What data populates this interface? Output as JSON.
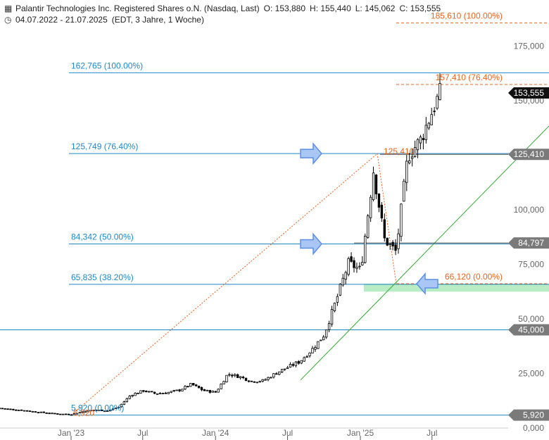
{
  "header": {
    "title_icon": "chart-bars-icon",
    "title": "Palantir Technologies Inc. Registered Shares o.N. (Nasdaq, Last)",
    "open": "O: 153,880",
    "high": "H: 155,440",
    "low": "L: 145,062",
    "close": "C: 153,555",
    "clock_icon": "clock-icon",
    "range": "04.07.2022 - 21.07.2025",
    "meta": "(EDT, 3 Jahre, 1 Woche)"
  },
  "chart_data": {
    "type": "candlestick",
    "title": "",
    "x_ticks": [
      "Jan '23",
      "Jul",
      "Jan '24",
      "Jul",
      "Jan '25",
      "Jul"
    ],
    "x_tick_dates": [
      "2023-01-01",
      "2023-07-01",
      "2024-01-01",
      "2024-07-01",
      "2025-01-01",
      "2025-07-01"
    ],
    "y_ticks": [
      "0,000",
      "25,000",
      "50,000",
      "75,000",
      "100,000",
      "125,000",
      "150,000",
      "175,000"
    ],
    "y_tick_values": [
      0,
      25,
      50,
      75,
      100,
      125,
      150,
      175
    ],
    "ylim": [
      0,
      190
    ],
    "series": [
      {
        "dates": [
          "2022-07-04",
          "2022-08-01",
          "2022-09-01",
          "2022-10-03",
          "2022-11-01",
          "2022-12-01",
          "2023-01-03",
          "2023-02-01",
          "2023-03-01",
          "2023-04-03",
          "2023-05-01",
          "2023-06-01",
          "2023-07-03",
          "2023-08-01",
          "2023-09-01",
          "2023-10-02",
          "2023-11-01",
          "2023-12-01",
          "2024-01-02",
          "2024-02-01",
          "2024-03-01",
          "2024-04-01",
          "2024-05-01",
          "2024-06-03",
          "2024-07-01",
          "2024-08-01",
          "2024-09-03",
          "2024-10-01",
          "2024-11-01",
          "2024-12-02",
          "2025-01-02",
          "2025-02-03",
          "2025-03-03",
          "2025-04-01",
          "2025-05-01",
          "2025-06-02",
          "2025-07-01",
          "2025-07-21"
        ],
        "close": [
          9.1,
          8.6,
          8.1,
          7.4,
          6.9,
          6.4,
          6.3,
          7.6,
          8.3,
          7.9,
          9.6,
          15.2,
          17.1,
          15.8,
          16.2,
          17.4,
          20.1,
          17.2,
          16.4,
          24.8,
          23.6,
          21.4,
          21.7,
          25.3,
          27.8,
          30.5,
          36.4,
          42.6,
          58.6,
          75.6,
          72.4,
          118.0,
          86.4,
          80.8,
          124.6,
          132.0,
          145.0,
          153.555
        ]
      }
    ],
    "fib_left": {
      "levels": [
        {
          "value": 162.765,
          "label": "162,765 (100.00%)"
        },
        {
          "value": 125.749,
          "label": "125,749 (76.40%)"
        },
        {
          "value": 84.342,
          "label": "84,342 (50.00%)"
        },
        {
          "value": 65.835,
          "label": "65,835 (38.20%)"
        },
        {
          "value": 5.92,
          "label": "5,920 (0.00%)"
        }
      ],
      "color": "#1e88c8"
    },
    "fib_right": {
      "levels": [
        {
          "value": 185.61,
          "label": "185,610 (100.00%)"
        },
        {
          "value": 157.41,
          "label": "157,410 (76.40%)"
        },
        {
          "value": 66.12,
          "label": "66,120 (0.00%)"
        }
      ],
      "color": "#e8641e"
    },
    "orange_markers": [
      "125,410",
      "5,920"
    ],
    "price_tags": [
      {
        "value": 153.555,
        "label": "153,555",
        "color": "#111111"
      },
      {
        "value": 125.41,
        "label": "125,410",
        "color": "#7a7a7a"
      },
      {
        "value": 84.797,
        "label": "84,797",
        "color": "#7a7a7a"
      },
      {
        "value": 45.0,
        "label": "45,000",
        "color": "#7a7a7a"
      },
      {
        "value": 5.92,
        "label": "5,920",
        "color": "#7a7a7a"
      }
    ],
    "support_zone": [
      62.5,
      66.12
    ],
    "colors": {
      "fib": "#1e88c8",
      "fib_ext": "#e8641e",
      "trend": "#33aa33",
      "zone": "#b8ecc4",
      "arrow_fill": "#aac6f4",
      "arrow_stroke": "#5b8fe6",
      "candle": "#000000"
    },
    "grid": false
  }
}
